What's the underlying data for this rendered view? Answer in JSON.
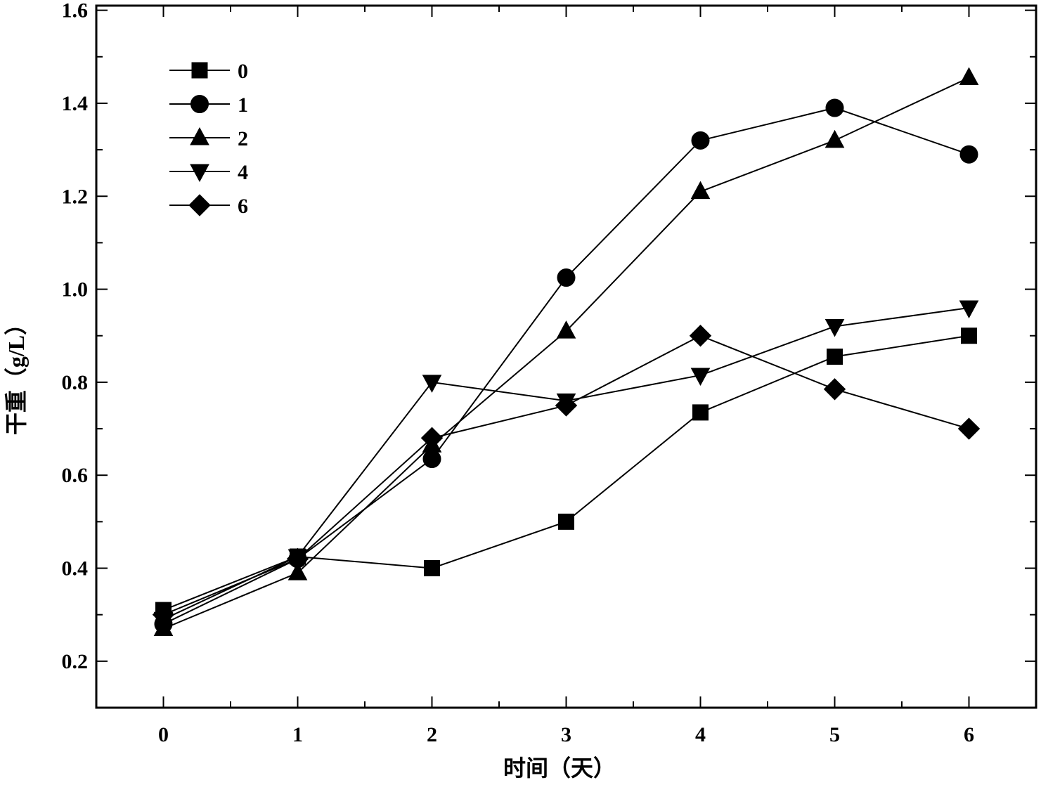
{
  "chart_data": {
    "type": "line",
    "xlabel": "时间（天）",
    "ylabel": "干重（g/L）",
    "x": [
      0,
      1,
      2,
      3,
      4,
      5,
      6
    ],
    "xlim": [
      -0.5,
      6.5
    ],
    "ylim": [
      0.1,
      1.61
    ],
    "xticks": [
      0,
      1,
      2,
      3,
      4,
      5,
      6
    ],
    "xtick_labels": [
      "0",
      "1",
      "2",
      "3",
      "4",
      "5",
      "6"
    ],
    "yticks": [
      0.2,
      0.4,
      0.6,
      0.8,
      1.0,
      1.2,
      1.4,
      1.6
    ],
    "ytick_labels": [
      "0.2",
      "0.4",
      "0.6",
      "0.8",
      "1.0",
      "1.2",
      "1.4",
      "1.6"
    ],
    "grid": false,
    "legend_position": "top-left",
    "series": [
      {
        "name": "0",
        "marker": "square",
        "values": [
          0.31,
          0.425,
          0.4,
          0.5,
          0.735,
          0.855,
          0.9
        ]
      },
      {
        "name": "1",
        "marker": "circle",
        "values": [
          0.28,
          0.42,
          0.635,
          1.025,
          1.32,
          1.39,
          1.29
        ]
      },
      {
        "name": "2",
        "marker": "triangle-up",
        "values": [
          0.27,
          0.39,
          0.665,
          0.91,
          1.21,
          1.32,
          1.455
        ]
      },
      {
        "name": "4",
        "marker": "triangle-down",
        "values": [
          0.29,
          0.425,
          0.8,
          0.76,
          0.815,
          0.92,
          0.96
        ]
      },
      {
        "name": "6",
        "marker": "diamond",
        "values": [
          0.3,
          0.42,
          0.68,
          0.75,
          0.9,
          0.785,
          0.7
        ]
      }
    ]
  }
}
